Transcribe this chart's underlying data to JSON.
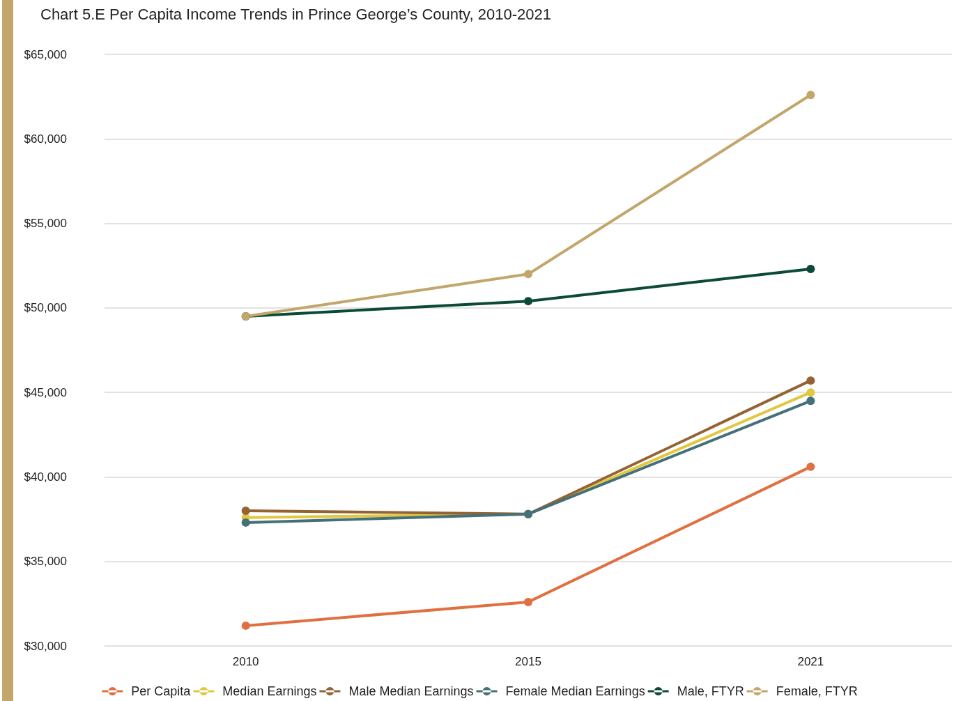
{
  "chart_data": {
    "type": "line",
    "title": "Chart 5.E Per Capita Income Trends in Prince George’s County, 2010-2021",
    "categories": [
      "2010",
      "2015",
      "2021"
    ],
    "series": [
      {
        "name": "Per Capita",
        "color": "#e07040",
        "values": [
          31200,
          32600,
          40600
        ]
      },
      {
        "name": "Median Earnings",
        "color": "#e0c840",
        "values": [
          37600,
          37800,
          45000
        ]
      },
      {
        "name": "Male Median Earnings",
        "color": "#946334",
        "values": [
          38000,
          37800,
          45700
        ]
      },
      {
        "name": "Female Median Earnings",
        "color": "#44707a",
        "values": [
          37300,
          37800,
          44500
        ]
      },
      {
        "name": "Male, FTYR",
        "color": "#0b4a38",
        "values": [
          49500,
          50400,
          52300
        ]
      },
      {
        "name": "Female, FTYR",
        "color": "#c2a66b",
        "values": [
          49500,
          52000,
          62600
        ]
      }
    ],
    "ylim": [
      30000,
      65000
    ],
    "yticks": [
      {
        "value": 30000,
        "label": "$30,000"
      },
      {
        "value": 35000,
        "label": "$35,000"
      },
      {
        "value": 40000,
        "label": "$40,000"
      },
      {
        "value": 45000,
        "label": "$45,000"
      },
      {
        "value": 50000,
        "label": "$50,000"
      },
      {
        "value": 55000,
        "label": "$55,000"
      },
      {
        "value": 60000,
        "label": "$60,000"
      },
      {
        "value": 65000,
        "label": "$65,000"
      }
    ],
    "grid": "y",
    "legend": "bottom",
    "marker": "circle",
    "line_style": "solid"
  }
}
